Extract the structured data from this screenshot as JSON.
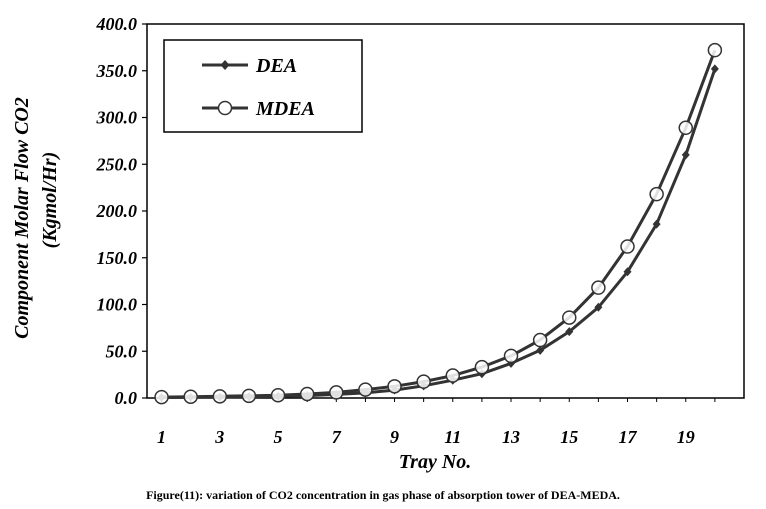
{
  "chart_data": {
    "type": "line",
    "x": [
      1,
      2,
      3,
      4,
      5,
      6,
      7,
      8,
      9,
      10,
      11,
      12,
      13,
      14,
      15,
      16,
      17,
      18,
      19,
      20
    ],
    "series": [
      {
        "name": "DEA",
        "marker": "diamond",
        "color": "#333333",
        "values": [
          0.5,
          0.8,
          1.0,
          1.3,
          1.8,
          2.6,
          3.8,
          5.5,
          8.5,
          13.0,
          19.0,
          26.0,
          37.0,
          51.0,
          71.0,
          97.0,
          135.0,
          186.0,
          260.0,
          352.0
        ]
      },
      {
        "name": "MDEA",
        "marker": "circle",
        "color": "#333333",
        "values": [
          1.0,
          1.4,
          1.8,
          2.3,
          3.0,
          4.3,
          6.0,
          9.0,
          12.5,
          17.5,
          24.0,
          33.0,
          45.0,
          62.0,
          86.0,
          118.0,
          162.0,
          218.0,
          289.0,
          372.0
        ]
      }
    ],
    "ylim": [
      0,
      400
    ],
    "yticks": [
      "0.0",
      "50.0",
      "100.0",
      "150.0",
      "200.0",
      "250.0",
      "300.0",
      "350.0",
      "400.0"
    ],
    "xticks": [
      "1",
      "3",
      "5",
      "7",
      "9",
      "11",
      "13",
      "15",
      "17",
      "19"
    ],
    "xlabel": "Tray No.",
    "ylabel_line1": "Component Molar Flow CO2",
    "ylabel_line2": "(Kgmol/Hr)",
    "legend": [
      "DEA",
      "MDEA"
    ],
    "legend_position": "top-left"
  },
  "caption": "Figure(11): variation of CO2 concentration in gas phase of absorption tower of DEA-MEDA."
}
